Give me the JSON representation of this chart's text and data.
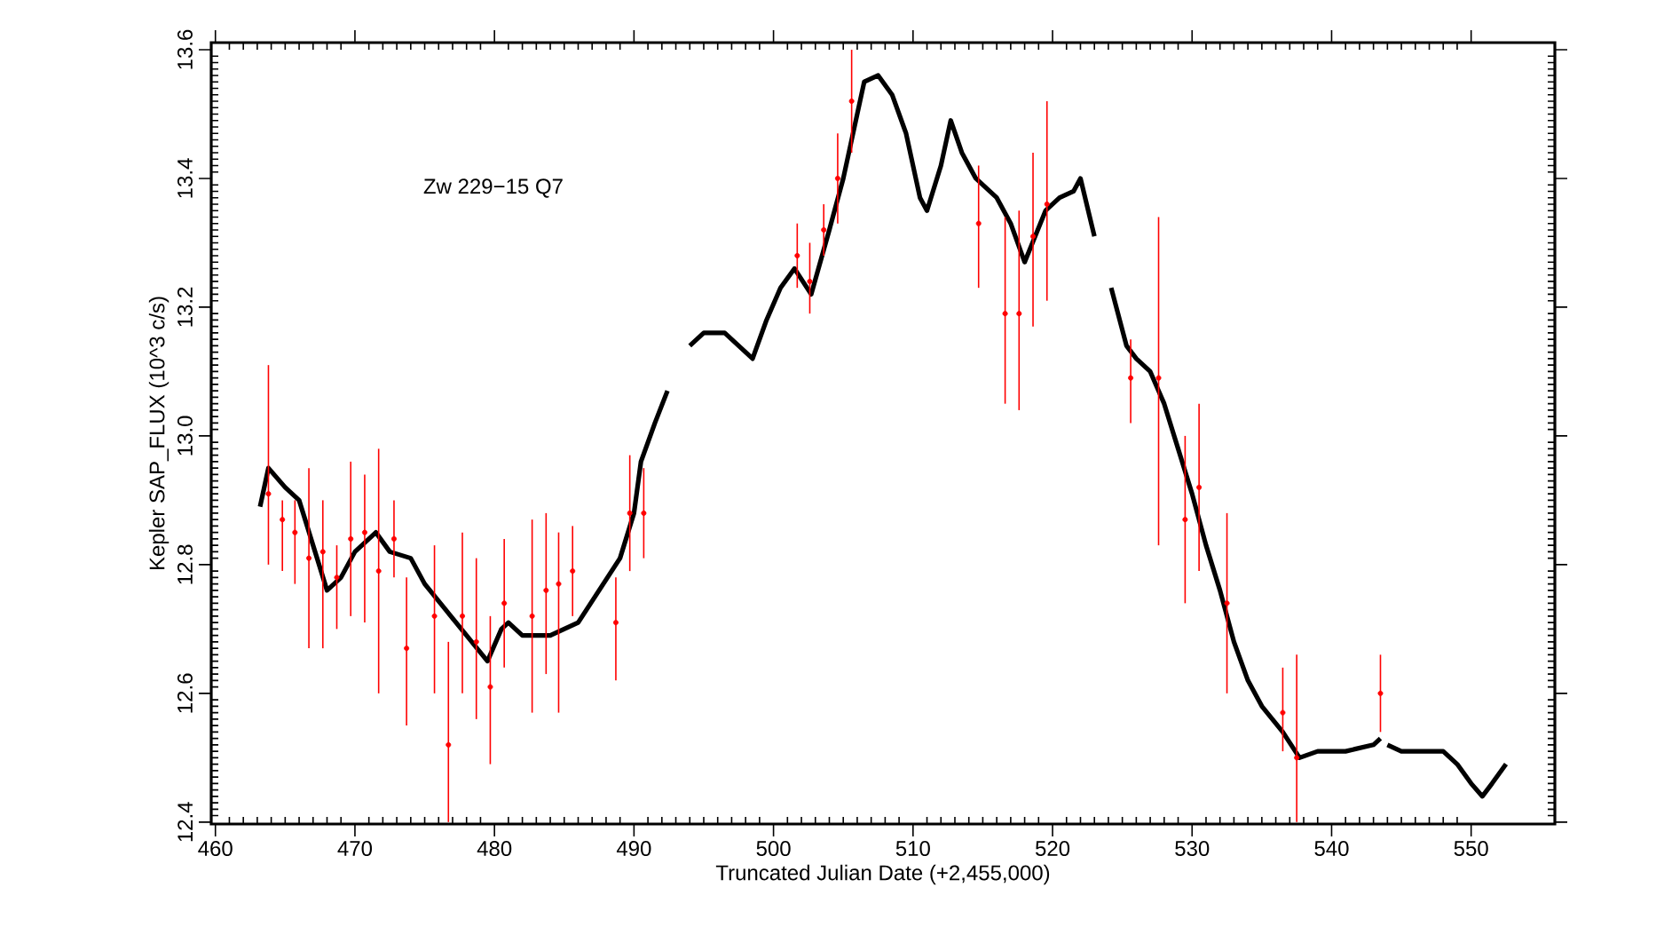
{
  "chart_data": {
    "type": "line",
    "title": "Zw 229−15 Q7",
    "xlabel": "Truncated Julian Date (+2,455,000)",
    "ylabel": "Kepler SAP_FLUX (10^3 c/s)",
    "xlim": [
      459.7,
      556
    ],
    "ylim": [
      12.397,
      13.611
    ],
    "xticks": [
      460,
      470,
      480,
      490,
      500,
      510,
      520,
      530,
      540,
      550
    ],
    "yticks": [
      12.4,
      12.6,
      12.8,
      {
        "value": 13,
        "label": "13.0"
      },
      13.2,
      13.4,
      13.6
    ],
    "grid": false,
    "series": [
      {
        "color": "#000000",
        "marker": "none",
        "line_style": "solid",
        "x": [
          463.2,
          463.8,
          465,
          466,
          467,
          468,
          469,
          470,
          471.5,
          472.5,
          474,
          475,
          476.5,
          478,
          479.5,
          480.5,
          481,
          482,
          484,
          485,
          486,
          487.5,
          489,
          490,
          490.5,
          491.5,
          492.4,
          493.2,
          494,
          495,
          496.5,
          497.5,
          498.5,
          499.5,
          500.5,
          501.5,
          502.7,
          504,
          505,
          506,
          506.5,
          507.5,
          508.5,
          509.5,
          510.5,
          511,
          512,
          512.7,
          513.5,
          514.5,
          516,
          517,
          518,
          519.5,
          520.5,
          521.5,
          522,
          523,
          523.6,
          524.2,
          525.3,
          526,
          527,
          528,
          529,
          530,
          531,
          532,
          533,
          534,
          535,
          536.5,
          537.7,
          539,
          541,
          543,
          543.5,
          543.8,
          544,
          545,
          546.5,
          548,
          549,
          550,
          550.8,
          551.5,
          552.5
        ],
        "values": [
          12.89,
          12.95,
          12.92,
          12.9,
          12.83,
          12.76,
          12.78,
          12.82,
          12.85,
          12.82,
          12.81,
          12.77,
          12.73,
          12.69,
          12.65,
          12.7,
          12.71,
          12.69,
          12.69,
          12.7,
          12.71,
          12.76,
          12.81,
          12.88,
          12.96,
          13.02,
          13.07,
          null,
          13.14,
          13.16,
          13.16,
          13.14,
          13.12,
          13.18,
          13.23,
          13.26,
          13.22,
          13.32,
          13.4,
          13.5,
          13.55,
          13.56,
          13.53,
          13.47,
          13.37,
          13.35,
          13.42,
          13.49,
          13.44,
          13.4,
          13.37,
          13.33,
          13.27,
          13.35,
          13.37,
          13.38,
          13.4,
          13.31,
          null,
          13.23,
          13.14,
          13.12,
          13.1,
          13.05,
          12.98,
          12.91,
          12.83,
          12.76,
          12.68,
          12.62,
          12.58,
          12.54,
          12.5,
          12.51,
          12.51,
          12.52,
          12.53,
          null,
          12.52,
          12.51,
          12.51,
          12.51,
          12.49,
          12.46,
          12.44,
          12.46,
          12.49
        ]
      },
      {
        "type": "scatter",
        "color": "#ff0000",
        "marker": "circle",
        "x": [
          463.8,
          464.8,
          465.7,
          466.7,
          467.7,
          468.7,
          469.7,
          470.7,
          471.7,
          472.8,
          473.7,
          475.7,
          476.7,
          477.7,
          478.7,
          479.7,
          480.7,
          482.7,
          483.7,
          484.6,
          485.6,
          488.7,
          489.7,
          490.7,
          501.7,
          502.6,
          503.6,
          504.6,
          505.6,
          514.7,
          516.6,
          517.6,
          518.6,
          519.6,
          525.6,
          527.6,
          529.5,
          530.5,
          532.5,
          536.5,
          537.5,
          543.5
        ],
        "values": [
          12.91,
          12.87,
          12.85,
          12.81,
          12.82,
          12.78,
          12.84,
          12.85,
          12.79,
          12.84,
          12.67,
          12.72,
          12.52,
          12.72,
          12.68,
          12.61,
          12.74,
          12.72,
          12.76,
          12.77,
          12.79,
          12.71,
          12.88,
          12.88,
          13.28,
          13.24,
          13.32,
          13.4,
          13.52,
          13.33,
          13.19,
          13.19,
          13.31,
          13.36,
          13.09,
          13.09,
          12.87,
          12.92,
          12.74,
          12.57,
          12.5,
          12.6
        ],
        "errors": [
          [
            12.8,
            13.11
          ],
          [
            12.79,
            12.9
          ],
          [
            12.77,
            12.9
          ],
          [
            12.67,
            12.95
          ],
          [
            12.67,
            12.9
          ],
          [
            12.7,
            12.83
          ],
          [
            12.72,
            12.96
          ],
          [
            12.71,
            12.94
          ],
          [
            12.6,
            12.98
          ],
          [
            12.78,
            12.9
          ],
          [
            12.55,
            12.78
          ],
          [
            12.6,
            12.83
          ],
          [
            12.4,
            12.68
          ],
          [
            12.6,
            12.85
          ],
          [
            12.56,
            12.81
          ],
          [
            12.49,
            12.72
          ],
          [
            12.64,
            12.84
          ],
          [
            12.57,
            12.87
          ],
          [
            12.63,
            12.88
          ],
          [
            12.57,
            12.85
          ],
          [
            12.72,
            12.86
          ],
          [
            12.62,
            12.78
          ],
          [
            12.79,
            12.97
          ],
          [
            12.81,
            12.95
          ],
          [
            13.23,
            13.33
          ],
          [
            13.19,
            13.3
          ],
          [
            13.28,
            13.36
          ],
          [
            13.33,
            13.47
          ],
          [
            13.44,
            13.6
          ],
          [
            13.23,
            13.42
          ],
          [
            13.05,
            13.34
          ],
          [
            13.04,
            13.35
          ],
          [
            13.17,
            13.44
          ],
          [
            13.21,
            13.52
          ],
          [
            13.02,
            13.15
          ],
          [
            12.83,
            13.34
          ],
          [
            12.74,
            13
          ],
          [
            12.79,
            13.05
          ],
          [
            12.6,
            12.88
          ],
          [
            12.51,
            12.64
          ],
          [
            12.4,
            12.66
          ],
          [
            12.54,
            12.66
          ]
        ]
      }
    ]
  }
}
